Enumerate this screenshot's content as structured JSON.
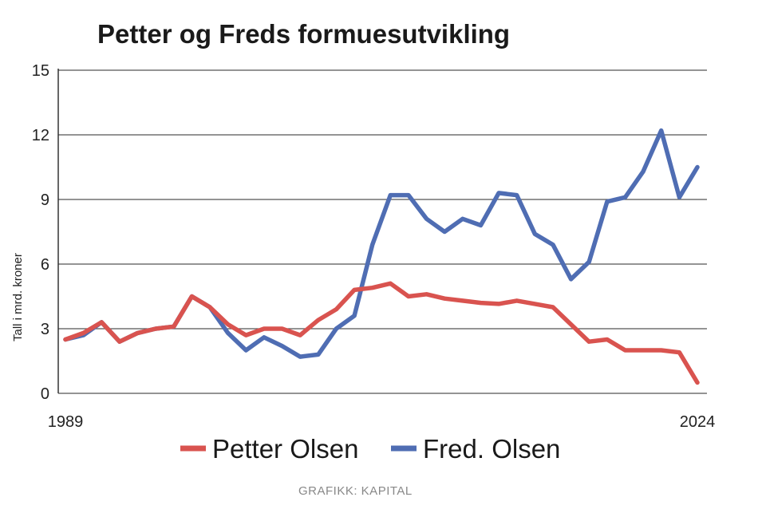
{
  "chart_data": {
    "type": "line",
    "title": "Petter og Freds formuesutvikling",
    "ylabel": "Tall i mrd. kroner",
    "xlabel": "",
    "ylim": [
      0,
      15
    ],
    "yticks": [
      "0",
      "3",
      "6",
      "9",
      "12",
      "15"
    ],
    "xticks": [
      "1989",
      "2024"
    ],
    "x": [
      1989,
      1990,
      1991,
      1992,
      1993,
      1994,
      1995,
      1996,
      1997,
      1998,
      1999,
      2000,
      2001,
      2002,
      2003,
      2004,
      2005,
      2006,
      2007,
      2008,
      2009,
      2010,
      2011,
      2012,
      2013,
      2014,
      2015,
      2016,
      2017,
      2018,
      2019,
      2020,
      2021,
      2022,
      2023,
      2024
    ],
    "series": [
      {
        "name": "Fred. Olsen",
        "color": "#4f6db3",
        "values": [
          2.5,
          2.7,
          3.3,
          2.4,
          2.8,
          3.0,
          3.1,
          4.5,
          4.0,
          2.8,
          2.0,
          2.6,
          2.2,
          1.7,
          1.8,
          3.0,
          3.6,
          6.9,
          9.2,
          9.2,
          8.1,
          7.5,
          8.1,
          7.8,
          9.3,
          9.2,
          7.4,
          6.9,
          5.3,
          6.1,
          8.9,
          9.1,
          10.3,
          12.2,
          9.1,
          10.5
        ]
      },
      {
        "name": "Petter Olsen",
        "color": "#d9534f",
        "values": [
          2.5,
          2.8,
          3.3,
          2.4,
          2.8,
          3.0,
          3.1,
          4.5,
          4.0,
          3.2,
          2.7,
          3.0,
          3.0,
          2.7,
          3.4,
          3.9,
          4.8,
          4.9,
          5.1,
          4.5,
          4.6,
          4.4,
          4.3,
          4.2,
          4.15,
          4.3,
          4.15,
          4.0,
          3.2,
          2.4,
          2.5,
          2.0,
          2.0,
          2.0,
          1.9,
          0.5
        ]
      }
    ],
    "legend_position": "bottom",
    "grid": true
  },
  "credit": "GRAFIKK: KAPITAL"
}
